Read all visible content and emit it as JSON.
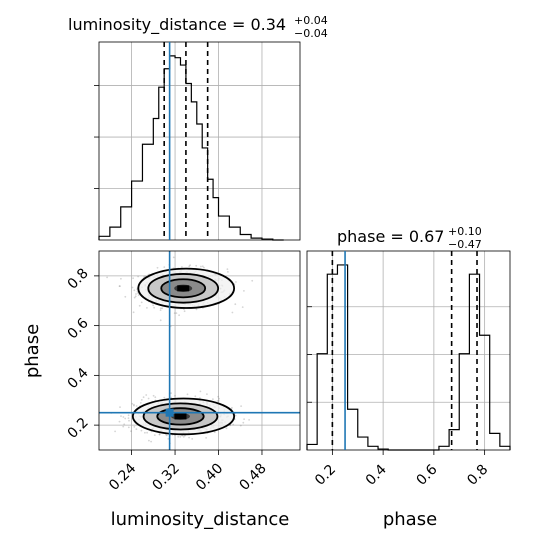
{
  "chart_data": [
    {
      "type": "histogram",
      "panel": "luminosity_distance-marginal",
      "title": "luminosity_distance",
      "title_value": "0.34",
      "title_plus": "+0.04",
      "title_minus": "−0.04",
      "xlim": [
        0.18,
        0.55
      ],
      "bins": [
        0.18,
        0.2,
        0.22,
        0.24,
        0.26,
        0.28,
        0.29,
        0.3,
        0.31,
        0.32,
        0.33,
        0.34,
        0.35,
        0.36,
        0.37,
        0.38,
        0.39,
        0.4,
        0.42,
        0.44,
        0.46,
        0.48,
        0.5,
        0.52
      ],
      "counts": [
        0.02,
        0.07,
        0.18,
        0.32,
        0.52,
        0.66,
        0.83,
        0.93,
        1.0,
        0.99,
        0.95,
        0.85,
        0.75,
        0.63,
        0.5,
        0.33,
        0.23,
        0.13,
        0.07,
        0.03,
        0.01,
        0.005,
        0.0
      ],
      "quantiles": [
        0.3,
        0.34,
        0.38
      ],
      "truth": 0.31
    },
    {
      "type": "scatter-contour",
      "panel": "luminosity_distance-vs-phase",
      "xlabel": "luminosity_distance",
      "ylabel": "phase",
      "xlim": [
        0.18,
        0.55
      ],
      "ylim": [
        0.1,
        0.9
      ],
      "xticks": [
        "0.24",
        "0.32",
        "0.40",
        "0.48"
      ],
      "xtick_values": [
        0.24,
        0.32,
        0.4,
        0.48
      ],
      "yticks": [
        "0.2",
        "0.4",
        "0.6",
        "0.8"
      ],
      "ytick_values": [
        0.2,
        0.4,
        0.6,
        0.8
      ],
      "modes": [
        {
          "x": 0.335,
          "y": 0.75,
          "sx": 0.035,
          "sy": 0.033
        },
        {
          "x": 0.33,
          "y": 0.235,
          "sx": 0.037,
          "sy": 0.03
        }
      ],
      "truth": {
        "x": 0.31,
        "y": 0.25
      }
    },
    {
      "type": "histogram",
      "panel": "phase-marginal",
      "title": "phase",
      "title_value": "0.67",
      "title_plus": "+0.10",
      "title_minus": "−0.47",
      "xlabel": "phase",
      "xlim": [
        0.1,
        0.9
      ],
      "xticks": [
        "0.2",
        "0.4",
        "0.6",
        "0.8"
      ],
      "xtick_values": [
        0.2,
        0.4,
        0.6,
        0.8
      ],
      "bins": [
        0.1,
        0.14,
        0.18,
        0.22,
        0.26,
        0.3,
        0.34,
        0.38,
        0.42,
        0.46,
        0.5,
        0.54,
        0.58,
        0.62,
        0.66,
        0.7,
        0.74,
        0.78,
        0.82,
        0.86,
        0.9
      ],
      "counts": [
        0.03,
        0.52,
        0.95,
        1.0,
        0.22,
        0.07,
        0.02,
        0.005,
        0.0,
        0.0,
        0.0,
        0.0,
        0.0,
        0.02,
        0.11,
        0.52,
        0.95,
        0.62,
        0.09,
        0.02
      ],
      "quantiles": [
        0.2,
        0.67,
        0.77
      ],
      "truth": 0.25
    }
  ]
}
